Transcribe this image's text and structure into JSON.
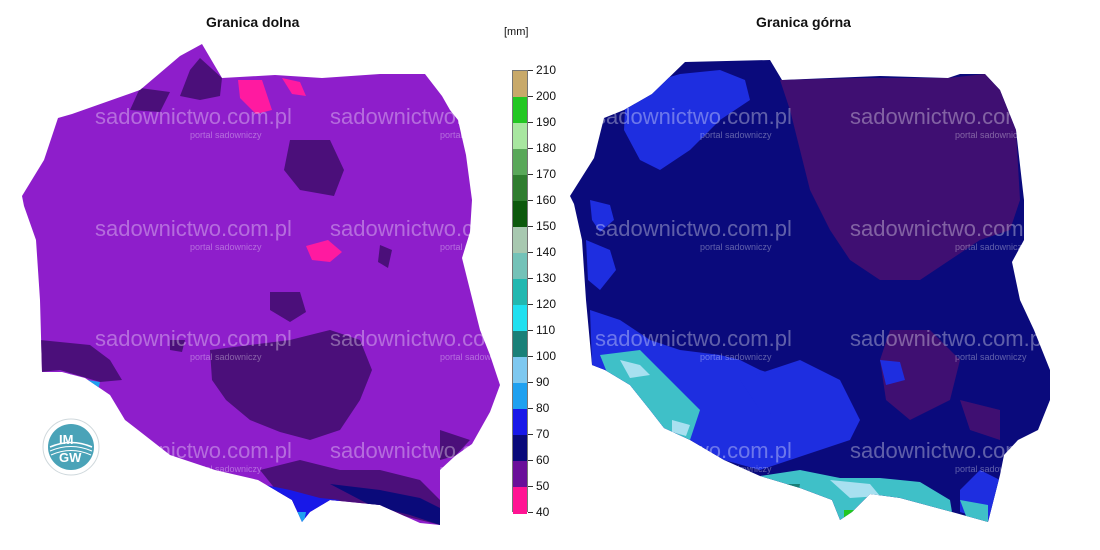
{
  "maps": {
    "left": {
      "title": "Granica dolna"
    },
    "right": {
      "title": "Granica górna"
    }
  },
  "legend": {
    "unit": "[mm]",
    "ticks": [
      "210",
      "200",
      "190",
      "180",
      "170",
      "160",
      "150",
      "140",
      "130",
      "120",
      "110",
      "100",
      "90",
      "80",
      "70",
      "60",
      "50",
      "40"
    ],
    "colors": [
      "#c8a96a",
      "#22c722",
      "#a8e6a0",
      "#5aa85a",
      "#2f7d2f",
      "#0d5a0d",
      "#a8c8b0",
      "#74c2b8",
      "#22b8b0",
      "#20e0f0",
      "#1a8078",
      "#7ec8f0",
      "#1ea0f0",
      "#1818e8",
      "#0a0a7a",
      "#6a0f9a",
      "#a010c0",
      "#ff1493"
    ]
  },
  "watermark": {
    "site": "sadownictwo.com.pl",
    "tagline": "portal sadowniczy"
  },
  "logo": {
    "line1": "IM",
    "line2": "GW"
  },
  "palette": {
    "lower_base": "#8e1ecb",
    "lower_dark": "#4b0f7a",
    "lower_pink": "#ff1aa0",
    "upper_base": "#0a0a7c",
    "upper_purple": "#3f0f72",
    "upper_blue": "#1e2ee0",
    "upper_cyan": "#3fc0c8",
    "upper_light": "#a8e0f0"
  }
}
